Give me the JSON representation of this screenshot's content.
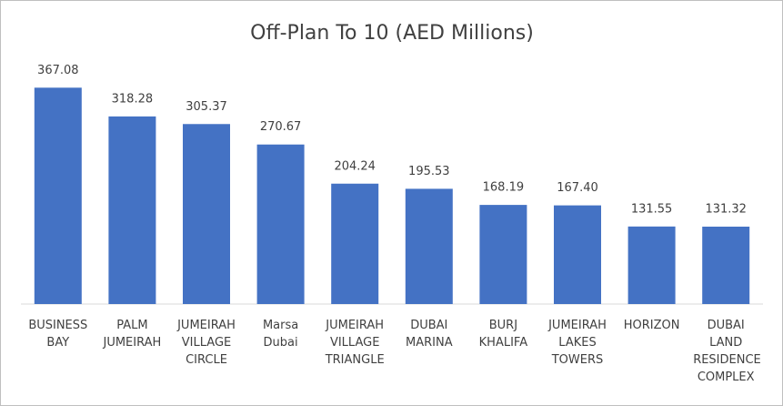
{
  "chart_data": {
    "type": "bar",
    "title": "Off-Plan To 10 (AED Millions)",
    "categories": [
      "BUSINESS BAY",
      "PALM JUMEIRAH",
      "JUMEIRAH VILLAGE CIRCLE",
      "Marsa Dubai",
      "JUMEIRAH VILLAGE TRIANGLE",
      "DUBAI MARINA",
      "BURJ KHALIFA",
      "JUMEIRAH LAKES TOWERS",
      "HORIZON",
      "DUBAI LAND RESIDENCE COMPLEX"
    ],
    "values": [
      367.08,
      318.28,
      305.37,
      270.67,
      204.24,
      195.53,
      168.19,
      167.4,
      131.55,
      131.32
    ],
    "value_labels": [
      "367.08",
      "318.28",
      "305.37",
      "270.67",
      "204.24",
      "195.53",
      "168.19",
      "167.40",
      "131.55",
      "131.32"
    ],
    "color": "#4472c4",
    "ylim": [
      0,
      400
    ]
  }
}
